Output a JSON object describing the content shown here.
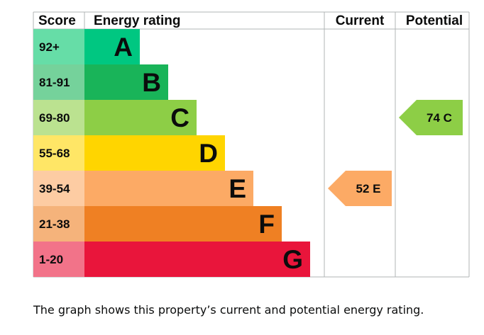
{
  "headers": {
    "score": "Score",
    "energy_rating": "Energy rating",
    "current": "Current",
    "potential": "Potential"
  },
  "chart_data": {
    "type": "bar",
    "bands": [
      {
        "range": "92+",
        "letter": "A",
        "band_color": "#00c781",
        "score_bg": "#66dda7"
      },
      {
        "range": "81-91",
        "letter": "B",
        "band_color": "#19b459",
        "score_bg": "#75d29b"
      },
      {
        "range": "69-80",
        "letter": "C",
        "band_color": "#8dce46",
        "score_bg": "#bbe290"
      },
      {
        "range": "55-68",
        "letter": "D",
        "band_color": "#ffd500",
        "score_bg": "#ffe666"
      },
      {
        "range": "39-54",
        "letter": "E",
        "band_color": "#fcaa65",
        "score_bg": "#fdcca3"
      },
      {
        "range": "21-38",
        "letter": "F",
        "band_color": "#ef8023",
        "score_bg": "#f5b37b"
      },
      {
        "range": "1-20",
        "letter": "G",
        "band_color": "#e9153b",
        "score_bg": "#f27389"
      }
    ],
    "current": {
      "value": 52,
      "letter": "E",
      "label": "52 E",
      "color": "#fcaa65"
    },
    "potential": {
      "value": 74,
      "letter": "C",
      "label": "74 C",
      "color": "#8dce46"
    }
  },
  "caption": "The graph shows this property’s current and potential energy rating."
}
